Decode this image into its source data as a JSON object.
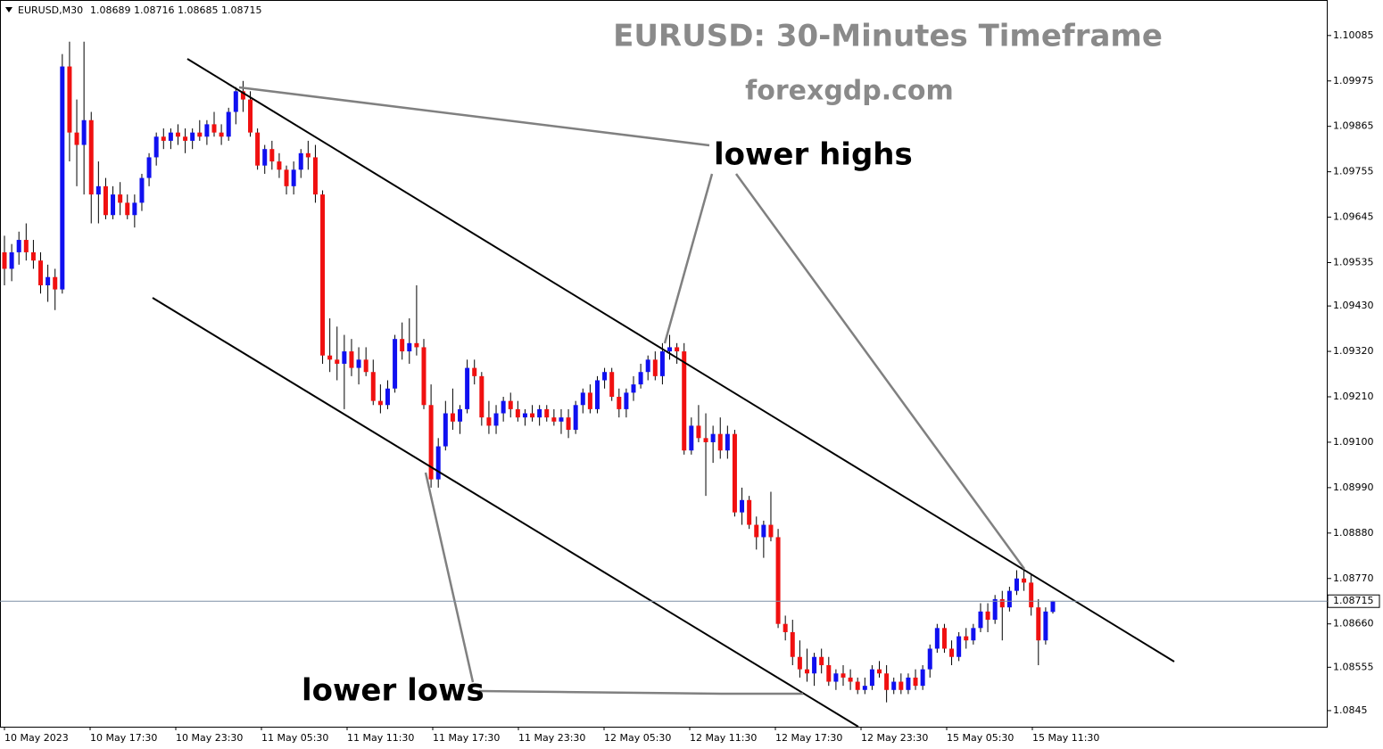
{
  "chart_data": {
    "type": "candlestick",
    "title": "EURUSD: 30-Minutes Timeframe",
    "subtitle": "forexgdp.com",
    "symbol": "EURUSD,M30",
    "annotations": [
      "lower highs",
      "lower lows"
    ],
    "bull_color": "#1010f0",
    "bear_color": "#f01010",
    "ylim": [
      1.08411,
      1.10171
    ],
    "yticks": [
      1.10085,
      1.09975,
      1.09865,
      1.09755,
      1.09645,
      1.09535,
      {
        "value": 1.0943,
        "label": "1.09430"
      },
      {
        "value": 1.0932,
        "label": "1.09320"
      },
      {
        "value": 1.0921,
        "label": "1.09210"
      },
      {
        "value": 1.091,
        "label": "1.09100"
      },
      {
        "value": 1.0899,
        "label": "1.08990"
      },
      {
        "value": 1.0888,
        "label": "1.08880"
      },
      {
        "value": 1.0877,
        "label": "1.08770"
      },
      {
        "value": 1.0866,
        "label": "1.08660"
      },
      1.08555,
      1.0845
    ],
    "xlabels": [
      "10 May 2023",
      "10 May 17:30",
      "10 May 23:30",
      "11 May 05:30",
      "11 May 11:30",
      "11 May 17:30",
      "11 May 23:30",
      "12 May 05:30",
      "12 May 11:30",
      "12 May 17:30",
      "12 May 23:30",
      "15 May 05:30",
      "15 May 11:30"
    ],
    "candles": [
      [
        1.0956,
        1.096,
        1.0948,
        1.0952
      ],
      [
        1.0952,
        1.0958,
        1.0949,
        1.0956
      ],
      [
        1.0956,
        1.0961,
        1.0953,
        1.0959
      ],
      [
        1.0959,
        1.0963,
        1.0954,
        1.0956
      ],
      [
        1.0956,
        1.0959,
        1.0952,
        1.0954
      ],
      [
        1.0954,
        1.0956,
        1.0946,
        1.0948
      ],
      [
        1.0948,
        1.0953,
        1.0944,
        1.095
      ],
      [
        1.095,
        1.0952,
        1.0942,
        1.0947
      ],
      [
        1.0947,
        1.1004,
        1.0946,
        1.1001
      ],
      [
        1.1001,
        1.1007,
        1.0978,
        1.0985
      ],
      [
        1.0985,
        1.0993,
        1.0972,
        1.0982
      ],
      [
        1.0982,
        1.1007,
        1.097,
        1.0988
      ],
      [
        1.0988,
        1.099,
        1.0963,
        1.097
      ],
      [
        1.097,
        1.0978,
        1.0963,
        1.0972
      ],
      [
        1.0972,
        1.0974,
        1.0964,
        1.0965
      ],
      [
        1.0965,
        1.0972,
        1.0964,
        1.097
      ],
      [
        1.097,
        1.0973,
        1.0965,
        1.0968
      ],
      [
        1.0968,
        1.097,
        1.0964,
        1.0965
      ],
      [
        1.0965,
        1.097,
        1.0962,
        1.0968
      ],
      [
        1.0968,
        1.0975,
        1.0966,
        1.0974
      ],
      [
        1.0974,
        1.098,
        1.0972,
        1.0979
      ],
      [
        1.0979,
        1.0985,
        1.0977,
        1.0984
      ],
      [
        1.0984,
        1.0986,
        1.0981,
        1.0983
      ],
      [
        1.0983,
        1.0986,
        1.0981,
        1.0985
      ],
      [
        1.0985,
        1.0987,
        1.0982,
        1.0984
      ],
      [
        1.0984,
        1.0986,
        1.098,
        1.0983
      ],
      [
        1.0983,
        1.0986,
        1.0981,
        1.0985
      ],
      [
        1.0985,
        1.0988,
        1.0983,
        1.0984
      ],
      [
        1.0984,
        1.0988,
        1.0982,
        1.0987
      ],
      [
        1.0987,
        1.099,
        1.0984,
        1.0985
      ],
      [
        1.0985,
        1.0987,
        1.0982,
        1.0984
      ],
      [
        1.0984,
        1.0991,
        1.0983,
        1.099
      ],
      [
        1.099,
        1.0996,
        1.0987,
        1.0995
      ],
      [
        1.0995,
        1.09975,
        1.099,
        1.0993
      ],
      [
        1.0993,
        1.0995,
        1.0984,
        1.0985
      ],
      [
        1.0985,
        1.0986,
        1.0976,
        1.0977
      ],
      [
        1.0977,
        1.0982,
        1.0975,
        1.0981
      ],
      [
        1.0981,
        1.0983,
        1.0976,
        1.0978
      ],
      [
        1.0978,
        1.098,
        1.0974,
        1.0976
      ],
      [
        1.0976,
        1.0977,
        1.097,
        1.0972
      ],
      [
        1.0972,
        1.0978,
        1.097,
        1.0976
      ],
      [
        1.0976,
        1.0981,
        1.0974,
        1.098
      ],
      [
        1.098,
        1.0983,
        1.0976,
        1.0979
      ],
      [
        1.0979,
        1.0982,
        1.0968,
        1.097
      ],
      [
        1.097,
        1.0971,
        1.0929,
        1.0931
      ],
      [
        1.0931,
        1.094,
        1.0927,
        1.093
      ],
      [
        1.093,
        1.0938,
        1.0925,
        1.0929
      ],
      [
        1.0929,
        1.0936,
        1.0918,
        1.0932
      ],
      [
        1.0932,
        1.0935,
        1.0926,
        1.0928
      ],
      [
        1.0928,
        1.0933,
        1.0924,
        1.093
      ],
      [
        1.093,
        1.0933,
        1.0926,
        1.0927
      ],
      [
        1.0927,
        1.093,
        1.0919,
        1.092
      ],
      [
        1.092,
        1.0924,
        1.0917,
        1.0919
      ],
      [
        1.0919,
        1.0925,
        1.0918,
        1.0923
      ],
      [
        1.0923,
        1.0936,
        1.0922,
        1.0935
      ],
      [
        1.0935,
        1.0939,
        1.093,
        1.0932
      ],
      [
        1.0932,
        1.094,
        1.0929,
        1.0934
      ],
      [
        1.0934,
        1.0948,
        1.0931,
        1.0933
      ],
      [
        1.0933,
        1.0935,
        1.0918,
        1.0919
      ],
      [
        1.0919,
        1.0924,
        1.0899,
        1.0901
      ],
      [
        1.0901,
        1.0911,
        1.0899,
        1.0909
      ],
      [
        1.0909,
        1.092,
        1.0908,
        1.0917
      ],
      [
        1.0917,
        1.0923,
        1.0913,
        1.0915
      ],
      [
        1.0915,
        1.0919,
        1.0912,
        1.0918
      ],
      [
        1.0918,
        1.093,
        1.0917,
        1.0928
      ],
      [
        1.0928,
        1.093,
        1.0924,
        1.0926
      ],
      [
        1.0926,
        1.0927,
        1.0914,
        1.0916
      ],
      [
        1.0916,
        1.092,
        1.0912,
        1.0914
      ],
      [
        1.0914,
        1.0919,
        1.0912,
        1.0917
      ],
      [
        1.0917,
        1.0921,
        1.0915,
        1.092
      ],
      [
        1.092,
        1.0922,
        1.0916,
        1.0918
      ],
      [
        1.0918,
        1.092,
        1.0915,
        1.0916
      ],
      [
        1.0916,
        1.0918,
        1.0914,
        1.0917
      ],
      [
        1.0917,
        1.0919,
        1.0915,
        1.0916
      ],
      [
        1.0916,
        1.0919,
        1.0914,
        1.0918
      ],
      [
        1.0918,
        1.0919,
        1.0915,
        1.0916
      ],
      [
        1.0916,
        1.0918,
        1.0914,
        1.0915
      ],
      [
        1.0915,
        1.0918,
        1.0912,
        1.0916
      ],
      [
        1.0916,
        1.0918,
        1.0911,
        1.0913
      ],
      [
        1.0913,
        1.092,
        1.0912,
        1.0919
      ],
      [
        1.0919,
        1.0923,
        1.0917,
        1.0922
      ],
      [
        1.0922,
        1.0924,
        1.0917,
        1.0918
      ],
      [
        1.0918,
        1.0926,
        1.0917,
        1.0925
      ],
      [
        1.0925,
        1.0928,
        1.0923,
        1.0927
      ],
      [
        1.0927,
        1.0928,
        1.092,
        1.0921
      ],
      [
        1.0921,
        1.0923,
        1.0916,
        1.0918
      ],
      [
        1.0918,
        1.0923,
        1.0916,
        1.0922
      ],
      [
        1.0922,
        1.0926,
        1.092,
        1.0924
      ],
      [
        1.0924,
        1.0929,
        1.0923,
        1.0927
      ],
      [
        1.0927,
        1.0931,
        1.0925,
        1.093
      ],
      [
        1.093,
        1.0932,
        1.0925,
        1.0926
      ],
      [
        1.0926,
        1.0934,
        1.0924,
        1.0932
      ],
      [
        1.0932,
        1.0936,
        1.093,
        1.0933
      ],
      [
        1.0933,
        1.0934,
        1.0929,
        1.0932
      ],
      [
        1.0932,
        1.0934,
        1.0907,
        1.0908
      ],
      [
        1.0908,
        1.0916,
        1.0907,
        1.0914
      ],
      [
        1.0914,
        1.0919,
        1.091,
        1.0911
      ],
      [
        1.0911,
        1.0917,
        1.0897,
        1.091
      ],
      [
        1.091,
        1.0914,
        1.0905,
        1.0912
      ],
      [
        1.0912,
        1.0916,
        1.0906,
        1.0908
      ],
      [
        1.0908,
        1.0914,
        1.0906,
        1.0912
      ],
      [
        1.0912,
        1.0913,
        1.0892,
        1.0893
      ],
      [
        1.0893,
        1.0899,
        1.089,
        1.0896
      ],
      [
        1.0896,
        1.0897,
        1.0889,
        1.089
      ],
      [
        1.089,
        1.0892,
        1.0884,
        1.0887
      ],
      [
        1.0887,
        1.0891,
        1.0882,
        1.089
      ],
      [
        1.089,
        1.0898,
        1.0886,
        1.0887
      ],
      [
        1.0887,
        1.0889,
        1.0865,
        1.0866
      ],
      [
        1.0866,
        1.0868,
        1.0862,
        1.0864
      ],
      [
        1.0864,
        1.0867,
        1.0856,
        1.0858
      ],
      [
        1.0858,
        1.0862,
        1.0853,
        1.0855
      ],
      [
        1.0855,
        1.086,
        1.0852,
        1.0854
      ],
      [
        1.0854,
        1.0859,
        1.0851,
        1.0858
      ],
      [
        1.0858,
        1.086,
        1.0854,
        1.0856
      ],
      [
        1.0856,
        1.0858,
        1.0851,
        1.0852
      ],
      [
        1.0852,
        1.0855,
        1.085,
        1.0854
      ],
      [
        1.0854,
        1.0856,
        1.0851,
        1.0853
      ],
      [
        1.0853,
        1.0855,
        1.085,
        1.0852
      ],
      [
        1.0852,
        1.0853,
        1.0849,
        1.085
      ],
      [
        1.085,
        1.0853,
        1.0849,
        1.0851
      ],
      [
        1.0851,
        1.0856,
        1.085,
        1.0855
      ],
      [
        1.0855,
        1.0857,
        1.0853,
        1.0854
      ],
      [
        1.0854,
        1.0856,
        1.0847,
        1.085
      ],
      [
        1.085,
        1.0853,
        1.0849,
        1.0852
      ],
      [
        1.0852,
        1.0854,
        1.0849,
        1.085
      ],
      [
        1.085,
        1.0854,
        1.0849,
        1.0853
      ],
      [
        1.0853,
        1.0855,
        1.085,
        1.0851
      ],
      [
        1.0851,
        1.0856,
        1.085,
        1.0855
      ],
      [
        1.0855,
        1.0861,
        1.0853,
        1.086
      ],
      [
        1.086,
        1.0866,
        1.0859,
        1.0865
      ],
      [
        1.0865,
        1.0866,
        1.0859,
        1.086
      ],
      [
        1.086,
        1.0862,
        1.0856,
        1.0858
      ],
      [
        1.0858,
        1.0864,
        1.0857,
        1.0863
      ],
      [
        1.0863,
        1.0865,
        1.086,
        1.0862
      ],
      [
        1.0862,
        1.0866,
        1.0861,
        1.0865
      ],
      [
        1.0865,
        1.0871,
        1.0864,
        1.0869
      ],
      [
        1.0869,
        1.0871,
        1.0864,
        1.0867
      ],
      [
        1.0867,
        1.0873,
        1.0866,
        1.0872
      ],
      [
        1.0872,
        1.0874,
        1.0862,
        1.087
      ],
      [
        1.087,
        1.0875,
        1.0869,
        1.0874
      ],
      [
        1.0874,
        1.0879,
        1.0873,
        1.0877
      ],
      [
        1.0877,
        1.0879,
        1.0874,
        1.0876
      ],
      [
        1.0876,
        1.0878,
        1.0868,
        1.087
      ],
      [
        1.087,
        1.0872,
        1.0856,
        1.0862
      ],
      [
        1.0862,
        1.087,
        1.0861,
        1.0869
      ],
      [
        1.08689,
        1.08716,
        1.08685,
        1.08715
      ]
    ]
  }
}
